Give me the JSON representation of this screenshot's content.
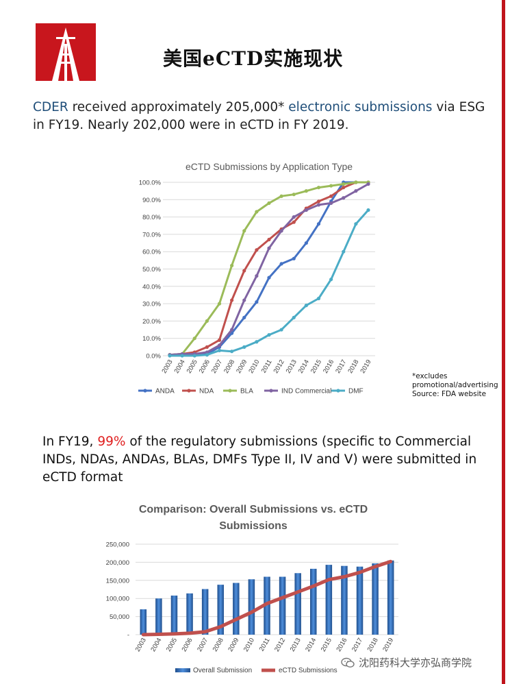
{
  "title": "美国eCTD实施现状",
  "lead": {
    "p1": "CDER",
    "p2": " received approximately 205,000*  ",
    "p3": "electronic submissions",
    "p4": " via ESG in FY19.  Nearly 202,000 were in eCTD in FY 2019."
  },
  "note": {
    "line1": "*excludes",
    "line2": "promotional/advertising",
    "line3": "Source: FDA website"
  },
  "para2": {
    "before": "In FY19, ",
    "highlight": "99%",
    "after": " of the regulatory  submissions (specific to  Commercial INDs, NDAs,  ANDAs, BLAs, DMFs Type II, IV and V) were submitted in eCTD  format"
  },
  "watermark": "沈阳药科大学亦弘商学院",
  "chart_data": [
    {
      "type": "line",
      "title": "eCTD Submissions by Application Type",
      "x": [
        "2003",
        "2004",
        "2005",
        "2006",
        "2007",
        "2008",
        "2009",
        "2010",
        "2011",
        "2012",
        "2013",
        "2014",
        "2015",
        "2016",
        "2017",
        "2018",
        "2019"
      ],
      "y_ticks": [
        "0.0%",
        "10.0%",
        "20.0%",
        "30.0%",
        "40.0%",
        "50.0%",
        "60.0%",
        "70.0%",
        "80.0%",
        "90.0%",
        "100.0%"
      ],
      "ylim": [
        0,
        100
      ],
      "legend_position": "bottom",
      "series": [
        {
          "name": "ANDA",
          "color": "#4472c4",
          "values": [
            0.5,
            0.5,
            0.5,
            1,
            5,
            13,
            22,
            31,
            45,
            53,
            56,
            65,
            76,
            89,
            100,
            100,
            100
          ]
        },
        {
          "name": "NDA",
          "color": "#c0504d",
          "values": [
            0.5,
            1,
            2,
            5,
            9,
            32,
            49,
            61,
            67,
            73,
            77,
            85,
            89,
            92,
            97,
            100,
            100
          ]
        },
        {
          "name": "BLA",
          "color": "#9bbb59",
          "values": [
            0.5,
            1,
            10,
            20,
            30,
            52,
            72,
            83,
            88,
            92,
            93,
            95,
            97,
            98,
            99,
            100,
            100
          ]
        },
        {
          "name": "IND Commercial",
          "color": "#8064a2",
          "values": [
            0.5,
            1,
            1,
            2,
            6,
            15,
            32,
            46,
            62,
            72,
            80,
            84,
            87,
            88,
            91,
            95,
            99
          ]
        },
        {
          "name": "DMF",
          "color": "#4bacc6",
          "values": [
            0,
            0,
            0,
            0.5,
            3,
            2.5,
            5,
            8,
            12,
            15,
            22,
            29,
            33,
            44,
            60,
            76,
            84
          ]
        }
      ]
    },
    {
      "type": "bar",
      "title": "Comparison: Overall Submissions vs. eCTD Submissions",
      "title_line1": "Comparison: Overall Submissions vs. eCTD",
      "title_line2": "Submissions",
      "categories": [
        "2003",
        "2004",
        "2005",
        "2006",
        "2007",
        "2008",
        "2009",
        "2010",
        "2011",
        "2012",
        "2013",
        "2014",
        "2015",
        "2016",
        "2017",
        "2018",
        "2019"
      ],
      "y_ticks": [
        "-",
        "50,000",
        "100,000",
        "150,000",
        "200,000",
        "250,000"
      ],
      "ylim": [
        0,
        250000
      ],
      "legend_position": "bottom",
      "series": [
        {
          "name": "Overall Submission",
          "type": "bar",
          "color": "#2f6fbf",
          "values": [
            70000,
            100000,
            108000,
            114000,
            126000,
            138000,
            143000,
            153000,
            160000,
            160000,
            170000,
            182000,
            193000,
            190000,
            188000,
            197000,
            205000
          ]
        },
        {
          "name": "eCTD Submissions",
          "type": "line",
          "color": "#c0504d",
          "values": [
            0,
            1000,
            2000,
            4000,
            8000,
            22000,
            42000,
            62000,
            86000,
            102000,
            118000,
            134000,
            152000,
            160000,
            172000,
            188000,
            202000
          ]
        }
      ]
    }
  ]
}
